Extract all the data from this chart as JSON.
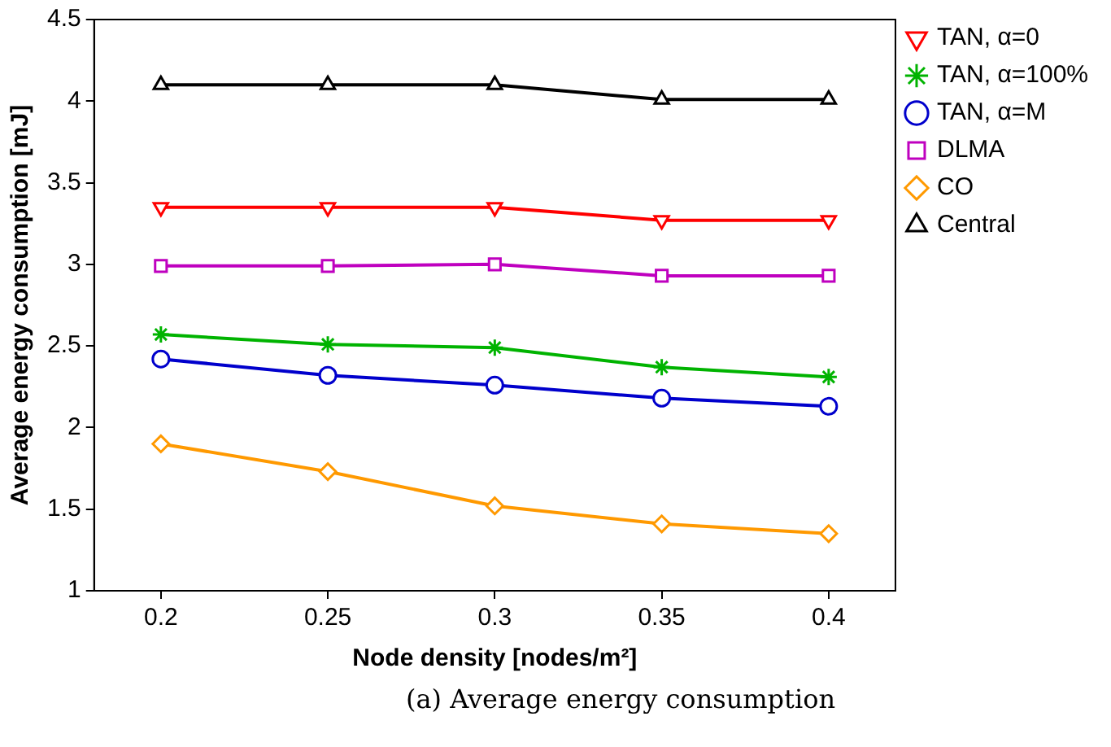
{
  "chart_data": {
    "type": "line",
    "xlabel": "Node density [nodes/m²]",
    "ylabel": "Average energy consumption [mJ]",
    "x": [
      0.2,
      0.25,
      0.3,
      0.35,
      0.4
    ],
    "xlim": [
      0.18,
      0.42
    ],
    "xticks": [
      0.2,
      0.25,
      0.3,
      0.35,
      0.4
    ],
    "ylim": [
      1,
      4.5
    ],
    "yticks": [
      1,
      1.5,
      2,
      2.5,
      3,
      3.5,
      4,
      4.5
    ],
    "grid": false,
    "legend": "top right",
    "series": [
      {
        "name": "TAN, α=0",
        "color": "#ff0000",
        "marker": "triangle_down",
        "values": [
          3.35,
          3.35,
          3.35,
          3.27,
          3.27
        ]
      },
      {
        "name": "TAN, α=100%",
        "color": "#00b300",
        "marker": "cross",
        "values": [
          2.57,
          2.51,
          2.49,
          2.37,
          2.31
        ]
      },
      {
        "name": "TAN, α=M",
        "color": "#0000cc",
        "marker": "circle",
        "values": [
          2.42,
          2.32,
          2.26,
          2.18,
          2.13
        ]
      },
      {
        "name": "DLMA",
        "color": "#bf00bf",
        "marker": "square",
        "values": [
          2.99,
          2.99,
          3.0,
          2.93,
          2.93
        ]
      },
      {
        "name": "CO",
        "color": "#ff9900",
        "marker": "diamond",
        "values": [
          1.9,
          1.73,
          1.52,
          1.41,
          1.35
        ]
      },
      {
        "name": "Central",
        "color": "#000000",
        "marker": "triangle",
        "values": [
          4.1,
          4.1,
          4.1,
          4.01,
          4.01
        ]
      }
    ],
    "annotations": [
      "(a) Average energy consumption"
    ]
  }
}
